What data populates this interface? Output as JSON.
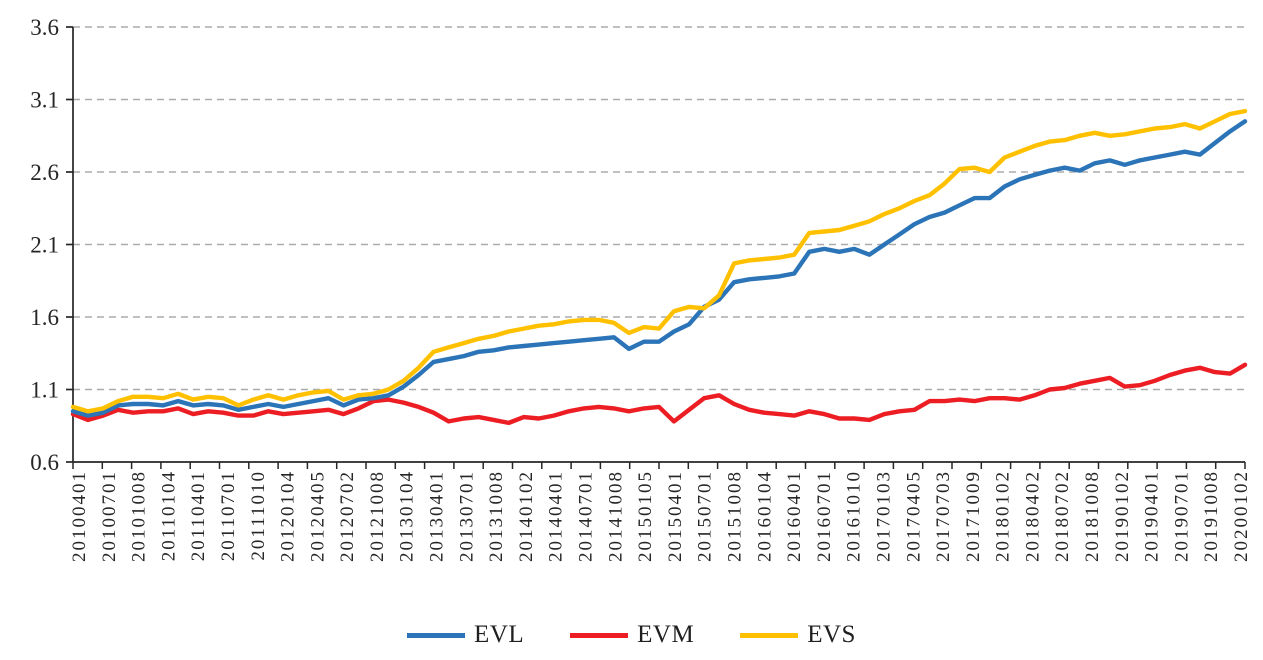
{
  "figure": {
    "background": "#ffffff"
  },
  "chart_data": {
    "type": "line",
    "title": "",
    "xlabel": "",
    "ylabel": "",
    "ylim": [
      0.6,
      3.6
    ],
    "yticks": [
      0.6,
      1.1,
      1.6,
      2.1,
      2.6,
      3.1,
      3.6
    ],
    "ytick_decimals": 1,
    "grid": "horizontal dashed gridlines at every y tick except 0.6",
    "legend_position": "bottom-center",
    "x_tick_labels": [
      "20100401",
      "20100701",
      "20101008",
      "20110104",
      "20110401",
      "20110701",
      "20111010",
      "20120104",
      "20120405",
      "20120702",
      "20121008",
      "20130104",
      "20130401",
      "20130701",
      "20131008",
      "20140102",
      "20140401",
      "20140701",
      "20141008",
      "20150105",
      "20150401",
      "20150701",
      "20151008",
      "20160104",
      "20160401",
      "20160701",
      "20161010",
      "20170103",
      "20170405",
      "20170703",
      "20171009",
      "20180102",
      "20180402",
      "20180702",
      "20181008",
      "20190102",
      "20190401",
      "20190701",
      "20191008",
      "20200102"
    ],
    "sampling_note": "79 samples per series: one at each labeled date plus one midpoint between consecutive labels",
    "series": [
      {
        "name": "EVL",
        "color": "#2B74B8",
        "values": [
          0.95,
          0.92,
          0.94,
          0.99,
          1.0,
          1.0,
          0.99,
          1.02,
          0.99,
          1.0,
          0.99,
          0.96,
          0.98,
          1.0,
          0.98,
          1.0,
          1.02,
          1.04,
          0.99,
          1.03,
          1.04,
          1.06,
          1.12,
          1.2,
          1.29,
          1.31,
          1.33,
          1.36,
          1.37,
          1.39,
          1.4,
          1.41,
          1.42,
          1.43,
          1.44,
          1.45,
          1.46,
          1.38,
          1.43,
          1.43,
          1.5,
          1.55,
          1.67,
          1.72,
          1.84,
          1.86,
          1.87,
          1.88,
          1.9,
          2.05,
          2.07,
          2.05,
          2.07,
          2.03,
          2.1,
          2.17,
          2.24,
          2.29,
          2.32,
          2.37,
          2.42,
          2.42,
          2.5,
          2.55,
          2.58,
          2.61,
          2.63,
          2.61,
          2.66,
          2.68,
          2.65,
          2.68,
          2.7,
          2.72,
          2.74,
          2.72,
          2.8,
          2.88,
          2.95
        ]
      },
      {
        "name": "EVM",
        "color": "#EC1E24",
        "values": [
          0.93,
          0.89,
          0.92,
          0.96,
          0.94,
          0.95,
          0.95,
          0.97,
          0.93,
          0.95,
          0.94,
          0.92,
          0.92,
          0.95,
          0.93,
          0.94,
          0.95,
          0.96,
          0.93,
          0.97,
          1.02,
          1.03,
          1.01,
          0.98,
          0.94,
          0.88,
          0.9,
          0.91,
          0.89,
          0.87,
          0.91,
          0.9,
          0.92,
          0.95,
          0.97,
          0.98,
          0.97,
          0.95,
          0.97,
          0.98,
          0.88,
          0.96,
          1.04,
          1.06,
          1.0,
          0.96,
          0.94,
          0.93,
          0.92,
          0.95,
          0.93,
          0.9,
          0.9,
          0.89,
          0.93,
          0.95,
          0.96,
          1.02,
          1.02,
          1.03,
          1.02,
          1.04,
          1.04,
          1.03,
          1.06,
          1.1,
          1.11,
          1.14,
          1.16,
          1.18,
          1.12,
          1.13,
          1.16,
          1.2,
          1.23,
          1.25,
          1.22,
          1.21,
          1.27
        ]
      },
      {
        "name": "EVS",
        "color": "#FFC000",
        "values": [
          0.98,
          0.95,
          0.97,
          1.02,
          1.05,
          1.05,
          1.04,
          1.07,
          1.03,
          1.05,
          1.04,
          0.99,
          1.03,
          1.06,
          1.03,
          1.06,
          1.08,
          1.09,
          1.03,
          1.06,
          1.07,
          1.1,
          1.16,
          1.25,
          1.36,
          1.39,
          1.42,
          1.45,
          1.47,
          1.5,
          1.52,
          1.54,
          1.55,
          1.57,
          1.58,
          1.58,
          1.56,
          1.49,
          1.53,
          1.52,
          1.64,
          1.67,
          1.66,
          1.75,
          1.97,
          1.99,
          2.0,
          2.01,
          2.03,
          2.18,
          2.19,
          2.2,
          2.23,
          2.26,
          2.31,
          2.35,
          2.4,
          2.44,
          2.52,
          2.62,
          2.63,
          2.6,
          2.7,
          2.74,
          2.78,
          2.81,
          2.82,
          2.85,
          2.87,
          2.85,
          2.86,
          2.88,
          2.9,
          2.91,
          2.93,
          2.9,
          2.95,
          3.0,
          3.02
        ]
      }
    ],
    "draw_order": [
      "EVM",
      "EVL",
      "EVS"
    ],
    "axis_color": "#262626",
    "gridline_color": "#ababab",
    "tick_label_color": "#262626"
  },
  "legend": {
    "items": [
      {
        "label": "EVL",
        "color": "#2B74B8"
      },
      {
        "label": "EVM",
        "color": "#EC1E24"
      },
      {
        "label": "EVS",
        "color": "#FFC000"
      }
    ]
  }
}
